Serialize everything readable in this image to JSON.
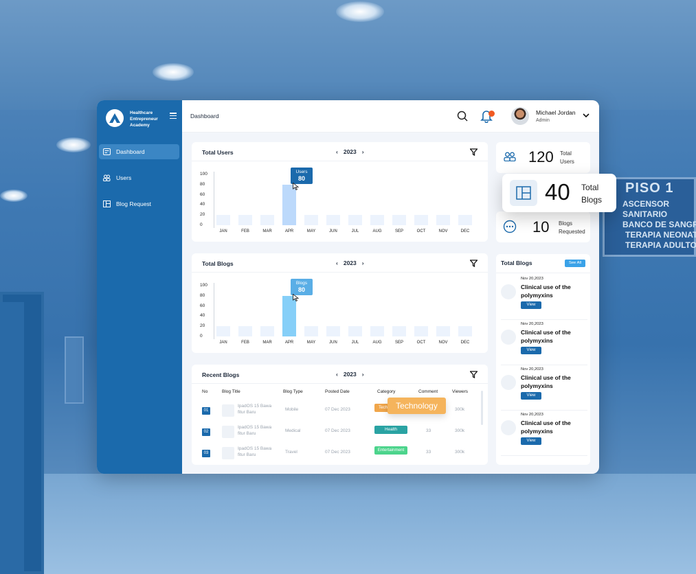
{
  "app": {
    "logo_text": "Healthcare Entrepreneur Academy",
    "page_title": "Dashboard"
  },
  "sidebar": {
    "items": [
      {
        "label": "Dashboard",
        "icon": "dashboard-icon",
        "active": true
      },
      {
        "label": "Users",
        "icon": "users-icon",
        "active": false
      },
      {
        "label": "Blog Request",
        "icon": "blog-request-icon",
        "active": false
      }
    ]
  },
  "user": {
    "name": "Michael Jordan",
    "role": "Admin"
  },
  "months": [
    "JAN",
    "FEB",
    "MAR",
    "APR",
    "MAY",
    "JUN",
    "JUL",
    "AUG",
    "SEP",
    "OCT",
    "NOV",
    "DEC"
  ],
  "yticks": [
    "100",
    "80",
    "60",
    "40",
    "20",
    "0"
  ],
  "users_card": {
    "title": "Total Users",
    "year": "2023",
    "tooltip_label": "Users",
    "tooltip_value": "80"
  },
  "blogs_card": {
    "title": "Total Blogs",
    "year": "2023",
    "tooltip_label": "Blogs",
    "tooltip_value": "80"
  },
  "chart_data": [
    {
      "type": "bar",
      "title": "Total Users",
      "categories": [
        "JAN",
        "FEB",
        "MAR",
        "APR",
        "MAY",
        "JUN",
        "JUL",
        "AUG",
        "SEP",
        "OCT",
        "NOV",
        "DEC"
      ],
      "values": [
        20,
        20,
        20,
        80,
        20,
        20,
        20,
        20,
        20,
        20,
        20,
        20
      ],
      "ylim": [
        0,
        100
      ],
      "highlight": "APR"
    },
    {
      "type": "bar",
      "title": "Total Blogs",
      "categories": [
        "JAN",
        "FEB",
        "MAR",
        "APR",
        "MAY",
        "JUN",
        "JUL",
        "AUG",
        "SEP",
        "OCT",
        "NOV",
        "DEC"
      ],
      "values": [
        20,
        20,
        20,
        80,
        20,
        20,
        20,
        20,
        20,
        20,
        20,
        20
      ],
      "ylim": [
        0,
        100
      ],
      "highlight": "APR"
    }
  ],
  "recent": {
    "title": "Recent Blogs",
    "year": "2023",
    "headers": [
      "No",
      "Blog Title",
      "Blog Type",
      "Posted Date",
      "Category",
      "Comment",
      "Viewers"
    ],
    "rows": [
      {
        "no": "01",
        "title": "IpadOS 15 Bawa fitur Baru",
        "type": "Mobile",
        "date": "07 Dec 2023",
        "category": "Tech",
        "comment": "",
        "viewers": "300k"
      },
      {
        "no": "02",
        "title": "IpadOS 15 Bawa fitur Baru",
        "type": "Medical",
        "date": "07 Dec 2023",
        "category": "Health",
        "comment": "33",
        "viewers": "300k"
      },
      {
        "no": "03",
        "title": "IpadOS 15 Bawa fitur Baru",
        "type": "Travel",
        "date": "07 Dec 2023",
        "category": "Entertainment",
        "comment": "33",
        "viewers": "300k"
      }
    ],
    "popup_label": "Technology"
  },
  "stats": [
    {
      "value": "120",
      "label_1": "Total",
      "label_2": "Users"
    },
    {
      "value": "40",
      "label_1": "Total",
      "label_2": "Blogs"
    },
    {
      "value": "10",
      "label_1": "Blogs",
      "label_2": "Requested"
    }
  ],
  "blog_list": {
    "title": "Total Blogs",
    "see_all": "See All",
    "items": [
      {
        "date": "Nov 20,2023",
        "title": "Clinical use of the polymyxins",
        "button": "View"
      },
      {
        "date": "Nov 20,2023",
        "title": "Clinical use of the polymyxins",
        "button": "View"
      },
      {
        "date": "Nov 20,2023",
        "title": "Clinical use of the polymyxins",
        "button": "View"
      },
      {
        "date": "Nov 20,2023",
        "title": "Clinical use of the polymyxins",
        "button": "View"
      }
    ]
  },
  "background_sign": {
    "title": "PISO 1",
    "lines": [
      "ASCENSOR",
      "SANITARIO",
      "BANCO DE SANGRE",
      "TERAPIA NEONATAL",
      "TERAPIA ADULTOS"
    ]
  },
  "colors": {
    "primary": "#1b6aac",
    "accent_orange": "#f0a64a",
    "health_teal": "#2aa3a3",
    "entertainment_green": "#4cd48c",
    "notification": "#f05a22"
  }
}
